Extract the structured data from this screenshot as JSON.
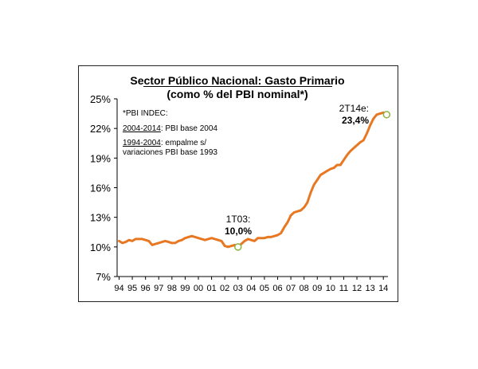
{
  "chart_data": {
    "type": "line",
    "title": "Sector Público Nacional: Gasto Primario",
    "subtitle": "(como % del PBI nominal*)",
    "ylim": [
      7,
      25
    ],
    "y_ticks": [
      "25%",
      "22%",
      "19%",
      "16%",
      "13%",
      "10%",
      "7%"
    ],
    "y_tick_values": [
      25,
      22,
      19,
      16,
      13,
      10,
      7
    ],
    "x_ticks": [
      "94",
      "95",
      "96",
      "97",
      "98",
      "99",
      "00",
      "01",
      "02",
      "03",
      "04",
      "05",
      "06",
      "07",
      "08",
      "09",
      "10",
      "11",
      "12",
      "13",
      "14"
    ],
    "xlim": [
      1993.85,
      2014.35
    ],
    "grid": false,
    "series": [
      {
        "color": "#E87722",
        "x": [
          1994.0,
          1994.25,
          1994.5,
          1994.75,
          1995.0,
          1995.25,
          1995.5,
          1995.75,
          1996.0,
          1996.25,
          1996.5,
          1996.75,
          1997.0,
          1997.25,
          1997.5,
          1997.75,
          1998.0,
          1998.25,
          1998.5,
          1998.75,
          1999.0,
          1999.25,
          1999.5,
          1999.75,
          2000.0,
          2000.25,
          2000.5,
          2000.75,
          2001.0,
          2001.25,
          2001.5,
          2001.75,
          2002.0,
          2002.25,
          2002.5,
          2002.75,
          2003.0,
          2003.25,
          2003.5,
          2003.75,
          2004.0,
          2004.25,
          2004.5,
          2004.75,
          2005.0,
          2005.25,
          2005.5,
          2005.75,
          2006.0,
          2006.25,
          2006.5,
          2006.75,
          2007.0,
          2007.25,
          2007.5,
          2007.75,
          2008.0,
          2008.25,
          2008.5,
          2008.75,
          2009.0,
          2009.25,
          2009.5,
          2009.75,
          2010.0,
          2010.25,
          2010.5,
          2010.75,
          2011.0,
          2011.25,
          2011.5,
          2011.75,
          2012.0,
          2012.25,
          2012.5,
          2012.75,
          2013.0,
          2013.25,
          2013.5,
          2013.75,
          2014.0,
          2014.25
        ],
        "y": [
          10.6,
          10.4,
          10.5,
          10.7,
          10.6,
          10.8,
          10.8,
          10.8,
          10.7,
          10.6,
          10.2,
          10.3,
          10.4,
          10.5,
          10.6,
          10.5,
          10.4,
          10.4,
          10.6,
          10.7,
          10.9,
          11.0,
          11.1,
          11.0,
          10.9,
          10.8,
          10.7,
          10.8,
          10.9,
          10.8,
          10.7,
          10.6,
          10.1,
          10.0,
          10.1,
          10.2,
          10.0,
          10.3,
          10.6,
          10.8,
          10.7,
          10.6,
          10.9,
          10.9,
          10.9,
          11.0,
          11.0,
          11.1,
          11.2,
          11.4,
          12.0,
          12.5,
          13.2,
          13.5,
          13.6,
          13.7,
          14.0,
          14.5,
          15.5,
          16.3,
          16.8,
          17.3,
          17.5,
          17.7,
          17.9,
          18.0,
          18.3,
          18.3,
          18.8,
          19.3,
          19.7,
          20.0,
          20.3,
          20.6,
          20.8,
          21.5,
          22.3,
          23.0,
          23.4,
          23.5,
          23.6,
          23.4
        ]
      }
    ],
    "notes": [
      "*PBI INDEC:",
      "2004-2014",
      ": PBI base 2004",
      "1994-2004",
      ": empalme s/",
      "variaciones PBI base 1993"
    ],
    "annotations": [
      {
        "label": "1T03:",
        "value": "10,0%",
        "x": 2003.0,
        "y": 10.0
      },
      {
        "label": "2T14e:",
        "value": "23,4%",
        "x": 2014.25,
        "y": 23.4
      }
    ]
  }
}
